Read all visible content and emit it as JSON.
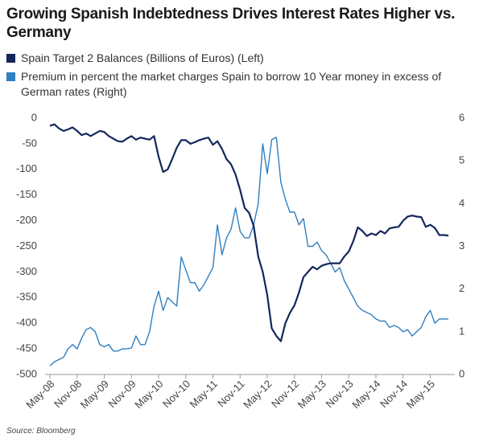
{
  "chart_data": {
    "type": "line",
    "title": "Growing Spanish Indebtedness Drives Interest Rates Higher vs. Germany",
    "source": "Source: Bloomberg",
    "categories": [
      "May-08",
      null,
      null,
      null,
      null,
      null,
      "Nov-08",
      null,
      null,
      null,
      null,
      null,
      "May-09",
      null,
      null,
      null,
      null,
      null,
      "Nov-09",
      null,
      null,
      null,
      null,
      null,
      "May-10",
      null,
      null,
      null,
      null,
      null,
      "Nov-10",
      null,
      null,
      null,
      null,
      null,
      "May-11",
      null,
      null,
      null,
      null,
      null,
      "Nov-11",
      null,
      null,
      null,
      null,
      null,
      "May-12",
      null,
      null,
      null,
      null,
      null,
      "Nov-12",
      null,
      null,
      null,
      null,
      null,
      "May-13",
      null,
      null,
      null,
      null,
      null,
      "Nov-13",
      null,
      null,
      null,
      null,
      null,
      "May-14",
      null,
      null,
      null,
      null,
      null,
      "Nov-14",
      null,
      null,
      null,
      null,
      null,
      "May-15",
      null,
      null,
      null,
      null
    ],
    "series": [
      {
        "name": "Spain Target 2 Balances (Billions of Euros) (Left)",
        "color": "#14275c",
        "axis": "y",
        "values": [
          -15,
          -12,
          -20,
          -25,
          -22,
          -18,
          -25,
          -33,
          -30,
          -35,
          -30,
          -25,
          -27,
          -35,
          -40,
          -45,
          -46,
          -40,
          -35,
          -42,
          -38,
          -40,
          -42,
          -35,
          -75,
          -105,
          -100,
          -80,
          -58,
          -43,
          -43,
          -50,
          -47,
          -43,
          -40,
          -38,
          -52,
          -45,
          -60,
          -80,
          -90,
          -110,
          -140,
          -175,
          -185,
          -210,
          -270,
          -300,
          -345,
          -410,
          -425,
          -435,
          -400,
          -380,
          -365,
          -340,
          -310,
          -300,
          -290,
          -295,
          -288,
          -285,
          -283,
          -283,
          -283,
          -270,
          -260,
          -240,
          -213,
          -220,
          -230,
          -225,
          -228,
          -220,
          -225,
          -215,
          -213,
          -212,
          -200,
          -192,
          -190,
          -192,
          -193,
          -212,
          -208,
          -214,
          -228,
          -228,
          -229
        ]
      },
      {
        "name": "Premium in percent the market charges Spain to borrow 10 Year money in excess of German rates (Right)",
        "color": "#2f7fc1",
        "axis": "y2",
        "values": [
          0.2,
          0.3,
          0.35,
          0.4,
          0.6,
          0.7,
          0.6,
          0.85,
          1.05,
          1.1,
          1.0,
          0.7,
          0.65,
          0.7,
          0.55,
          0.55,
          0.6,
          0.6,
          0.62,
          0.9,
          0.7,
          0.7,
          1.0,
          1.6,
          1.95,
          1.5,
          1.8,
          1.7,
          1.6,
          2.75,
          2.45,
          2.15,
          2.15,
          1.95,
          2.1,
          2.3,
          2.5,
          3.5,
          2.8,
          3.2,
          3.4,
          3.9,
          3.35,
          3.2,
          3.2,
          3.5,
          4.0,
          5.4,
          4.7,
          5.5,
          5.55,
          4.5,
          4.1,
          3.8,
          3.8,
          3.5,
          3.65,
          3.0,
          3.0,
          3.1,
          2.9,
          2.8,
          2.6,
          2.4,
          2.5,
          2.2,
          2.0,
          1.8,
          1.6,
          1.5,
          1.45,
          1.4,
          1.3,
          1.25,
          1.25,
          1.1,
          1.15,
          1.1,
          1.0,
          1.05,
          0.9,
          1.0,
          1.1,
          1.35,
          1.5,
          1.2,
          1.3,
          1.3,
          1.3
        ]
      }
    ],
    "ylim": [
      -500,
      0
    ],
    "yticks": [
      0,
      -50,
      -100,
      -150,
      -200,
      -250,
      -300,
      -350,
      -400,
      -450,
      -500
    ],
    "y2lim": [
      0,
      6
    ],
    "y2ticks": [
      0,
      1,
      2,
      3,
      4,
      5,
      6
    ],
    "grid": false
  }
}
